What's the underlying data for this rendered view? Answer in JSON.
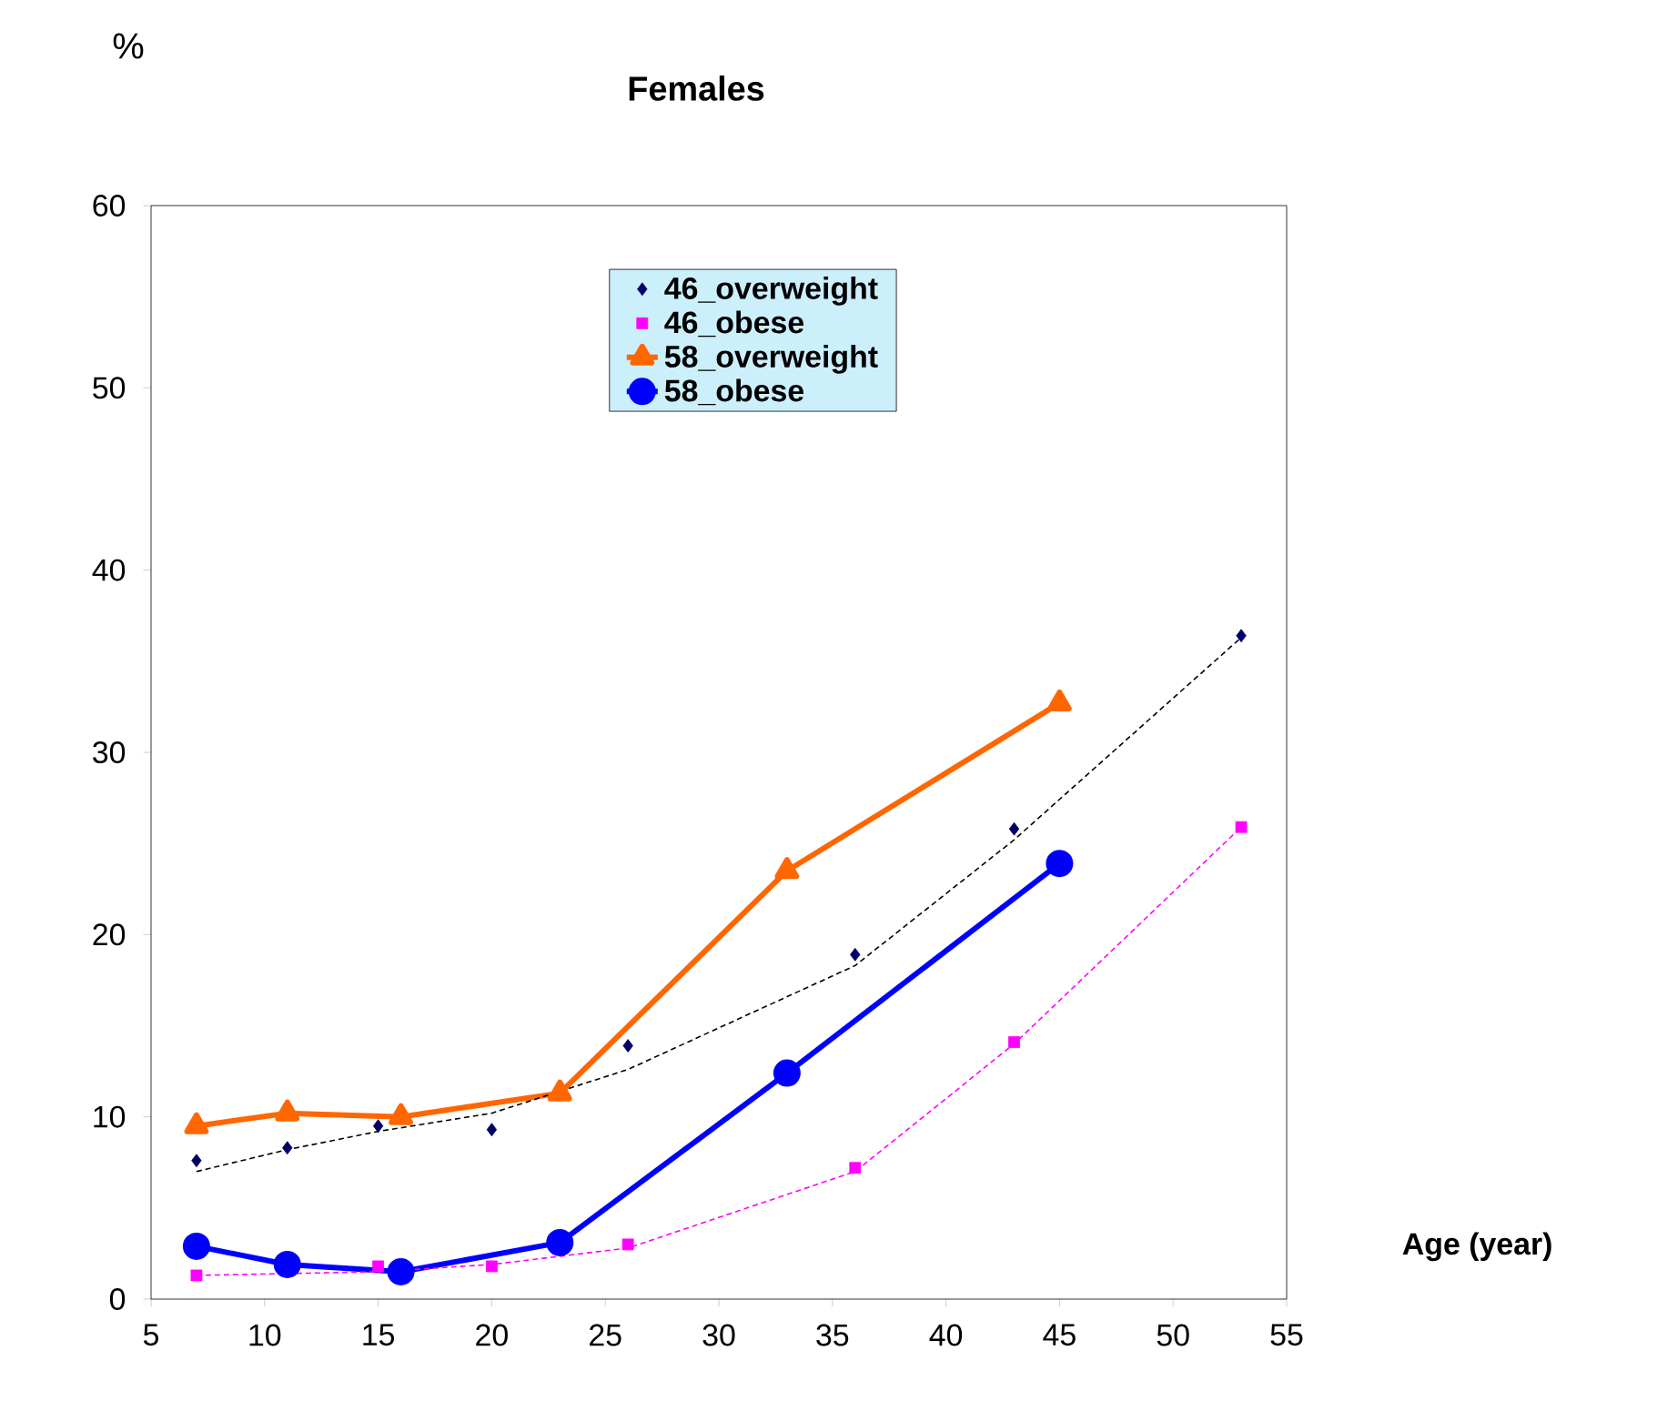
{
  "chart_data": {
    "type": "line",
    "title": "Females",
    "ylabel": "%",
    "xlabel": "Age (year)",
    "xlim": [
      5,
      55
    ],
    "ylim": [
      0,
      60
    ],
    "xticks": [
      5,
      10,
      15,
      20,
      25,
      30,
      35,
      40,
      45,
      50,
      55
    ],
    "yticks": [
      0,
      10,
      20,
      30,
      40,
      50,
      60
    ],
    "grid": false,
    "legend": "top",
    "series": [
      {
        "name": "46_overweight",
        "type": "scatter",
        "marker": "diamond",
        "color": "#000066",
        "x": [
          7,
          11,
          15,
          20,
          26,
          36,
          43,
          53
        ],
        "values": [
          7.6,
          8.3,
          9.5,
          9.3,
          13.9,
          18.9,
          25.8,
          36.4
        ]
      },
      {
        "name": "46_obese",
        "type": "scatter",
        "marker": "square",
        "color": "#ff00ff",
        "x": [
          7,
          15,
          20,
          26,
          36,
          43,
          53
        ],
        "values": [
          1.3,
          1.8,
          1.8,
          3.0,
          7.2,
          14.1,
          25.9
        ]
      },
      {
        "name": "58_overweight",
        "marker": "triangle",
        "line_style": "solid",
        "color": "#ff6600",
        "x": [
          7,
          11,
          16,
          23,
          33,
          45
        ],
        "values": [
          9.5,
          10.2,
          10.0,
          11.3,
          23.5,
          32.7
        ]
      },
      {
        "name": "58_obese",
        "marker": "circle",
        "line_style": "solid",
        "color": "#0000ff",
        "x": [
          7,
          11,
          16,
          23,
          33,
          45
        ],
        "values": [
          2.9,
          1.9,
          1.5,
          3.1,
          12.4,
          23.9
        ]
      },
      {
        "marker": "none",
        "line_style": "dashed",
        "color": "#000000",
        "x": [
          7,
          11,
          15,
          20,
          26,
          36,
          43,
          53
        ],
        "values": [
          7.0,
          8.2,
          9.2,
          10.2,
          12.6,
          18.3,
          25.2,
          36.3
        ]
      },
      {
        "marker": "none",
        "line_style": "dashed",
        "color": "#ff00ff",
        "x": [
          7,
          15,
          20,
          26,
          36,
          43,
          53
        ],
        "values": [
          1.3,
          1.5,
          1.9,
          2.8,
          7.0,
          14.0,
          25.9
        ]
      }
    ]
  }
}
